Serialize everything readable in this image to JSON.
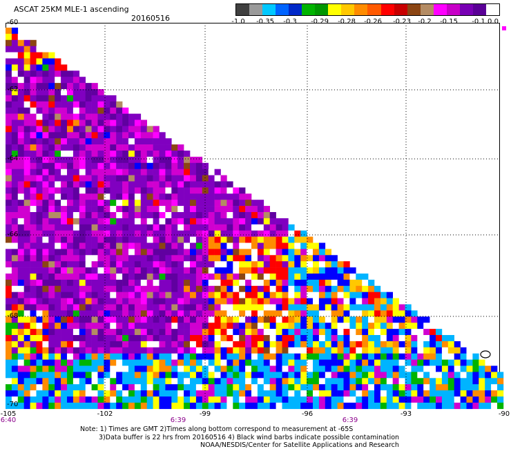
{
  "header": {
    "title": "ASCAT 25KM MLE-1 ascending",
    "date": "20160516"
  },
  "colorbar": {
    "colors": [
      "#404040",
      "#9a9a9a",
      "#00c8ff",
      "#0064ff",
      "#0028c8",
      "#00b400",
      "#009600",
      "#ffff00",
      "#ffc800",
      "#ff8c00",
      "#ff5a00",
      "#ff0000",
      "#c80000",
      "#8b4513",
      "#b48c64",
      "#ff00ff",
      "#c800c8",
      "#7800b4",
      "#5a0096",
      "#ffffff"
    ],
    "labels": [
      "-1.0",
      "-0.35",
      "-0.3",
      "-0.29",
      "-0.28",
      "-0.26",
      "-0.23",
      "-0.2",
      "-0.15",
      "-0.1",
      "0.0"
    ]
  },
  "map": {
    "lat_labels": [
      "-60",
      "-62",
      "-64",
      "-66",
      "-68",
      "-70"
    ],
    "lon_labels": [
      "-105",
      "-102",
      "-99",
      "-96",
      "-93",
      "-90"
    ],
    "time_labels": [
      "6:40",
      "6:39",
      "6:39"
    ],
    "palette": {
      "purple": "#8000c0",
      "dark_purple": "#6000a0",
      "magenta": "#d000d0",
      "pink": "#ff00ff",
      "red": "#ff0000",
      "orange": "#ff8c00",
      "yellow": "#ffff00",
      "gold": "#ffc800",
      "green": "#00b400",
      "blue": "#0000ff",
      "cyan": "#00b4ff",
      "brown": "#8b4513",
      "tan": "#b48c64",
      "dark_red": "#a00000",
      "white": "#ffffff",
      "black": "#202020"
    }
  },
  "notes": {
    "line1": "Note: 1) Times are GMT 2)Times along bottom correspond to measurement at -65S",
    "line2": "3)Data buffer is 22 hrs from 20160516 4) Black wind barbs indicate possible contamination",
    "line3": "NOAA/NESDIS/Center for Satellite Applications and Research"
  }
}
